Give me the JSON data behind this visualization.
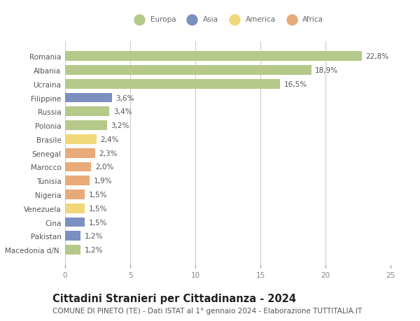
{
  "countries": [
    "Romania",
    "Albania",
    "Ucraina",
    "Filippine",
    "Russia",
    "Polonia",
    "Brasile",
    "Senegal",
    "Marocco",
    "Tunisia",
    "Nigeria",
    "Venezuela",
    "Cina",
    "Pakistan",
    "Macedonia d/N."
  ],
  "values": [
    22.8,
    18.9,
    16.5,
    3.6,
    3.4,
    3.2,
    2.4,
    2.3,
    2.0,
    1.9,
    1.5,
    1.5,
    1.5,
    1.2,
    1.2
  ],
  "labels": [
    "22,8%",
    "18,9%",
    "16,5%",
    "3,6%",
    "3,4%",
    "3,2%",
    "2,4%",
    "2,3%",
    "2,0%",
    "1,9%",
    "1,5%",
    "1,5%",
    "1,5%",
    "1,2%",
    "1,2%"
  ],
  "colors": [
    "#b5c98a",
    "#b5c98a",
    "#b5c98a",
    "#7b8fc0",
    "#b5c98a",
    "#b5c98a",
    "#f0d87a",
    "#e8aa78",
    "#e8aa78",
    "#e8aa78",
    "#e8aa78",
    "#f0d87a",
    "#7b8fc0",
    "#7b8fc0",
    "#b5c98a"
  ],
  "legend_labels": [
    "Europa",
    "Asia",
    "America",
    "Africa"
  ],
  "legend_colors": [
    "#b5c98a",
    "#7b8fc0",
    "#f0d87a",
    "#e8aa78"
  ],
  "xlim": [
    0,
    25
  ],
  "xticks": [
    0,
    5,
    10,
    15,
    20,
    25
  ],
  "title": "Cittadini Stranieri per Cittadinanza - 2024",
  "subtitle": "COMUNE DI PINETO (TE) - Dati ISTAT al 1° gennaio 2024 - Elaborazione TUTTITALIA.IT",
  "bg_color": "#ffffff",
  "grid_color": "#cccccc",
  "bar_height": 0.7,
  "title_fontsize": 10.5,
  "subtitle_fontsize": 7.5,
  "label_fontsize": 7.5,
  "tick_fontsize": 7.5
}
